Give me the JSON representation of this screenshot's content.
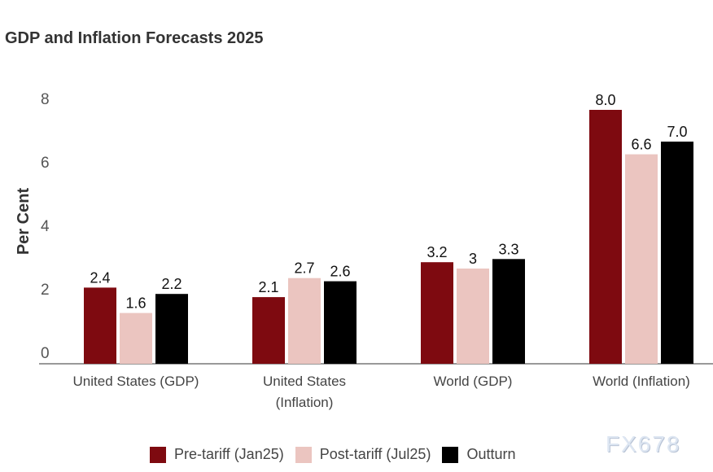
{
  "chart_data": {
    "type": "bar",
    "title": "GDP and Inflation Forecasts 2025",
    "ylabel": "Per Cent",
    "xlabel": "",
    "ylim": [
      0,
      8
    ],
    "yticks": [
      0,
      2,
      4,
      6,
      8
    ],
    "categories": [
      [
        "United States (GDP)"
      ],
      [
        "United States",
        "(Inflation)"
      ],
      [
        "World (GDP)"
      ],
      [
        "World (Inflation)"
      ]
    ],
    "series": [
      {
        "name": "Pre-tariff (Jan25)",
        "color": "#7e0a10",
        "values": [
          2.4,
          2.1,
          3.2,
          8.0
        ],
        "labels": [
          "2.4",
          "2.1",
          "3.2",
          "8.0"
        ]
      },
      {
        "name": "Post-tariff (Jul25)",
        "color": "#ebc5c0",
        "values": [
          1.6,
          2.7,
          3,
          6.6
        ],
        "labels": [
          "1.6",
          "2.7",
          "3",
          "6.6"
        ]
      },
      {
        "name": "Outturn",
        "color": "#000000",
        "values": [
          2.2,
          2.6,
          3.3,
          7.0
        ],
        "labels": [
          "2.2",
          "2.6",
          "3.3",
          "7.0"
        ]
      }
    ],
    "legend": "bottom",
    "grid": false
  },
  "watermark": "FX678"
}
